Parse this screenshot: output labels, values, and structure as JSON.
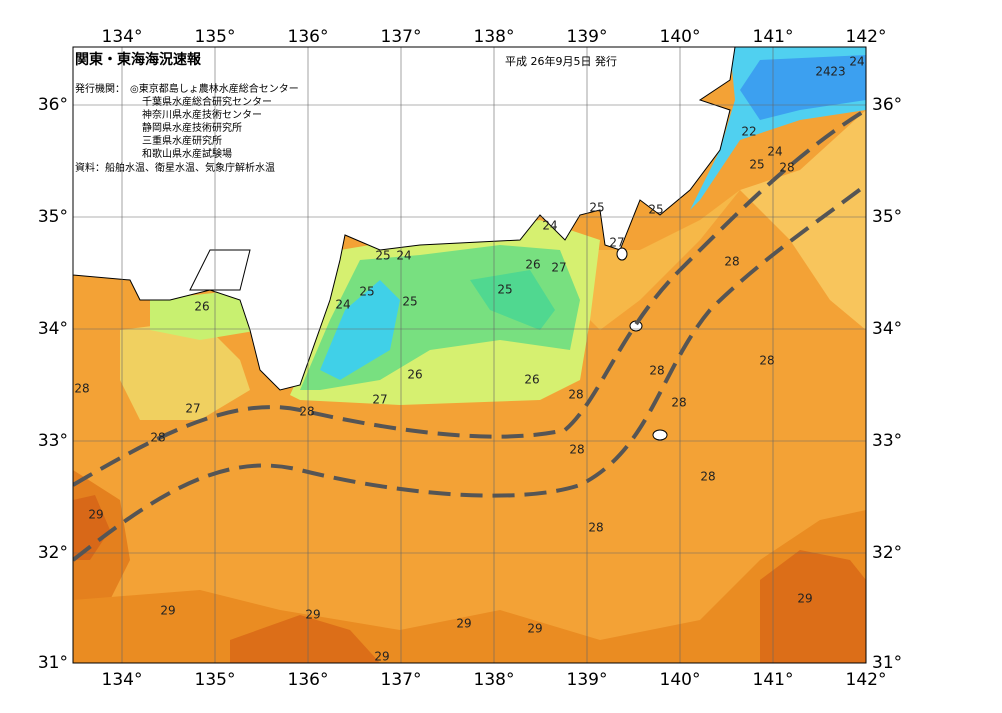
{
  "header": {
    "title": "関東・東海海況速報",
    "date": "平成 26年9月5日 発行",
    "issuer_label": "発行機関：",
    "issuers": [
      "◎東京都島しょ農林水産総合センター",
      "千葉県水産総合研究センター",
      "神奈川県水産技術センター",
      "静岡県水産技術研究所",
      "三重県水産研究所",
      "和歌山県水産試験場"
    ],
    "source": "資料：船舶水温、衛星水温、気象庁解析水温"
  },
  "axes": {
    "longitudes": [
      "134°",
      "135°",
      "136°",
      "137°",
      "138°",
      "139°",
      "140°",
      "141°",
      "142°"
    ],
    "latitudes": [
      "36°",
      "35°",
      "34°",
      "33°",
      "32°",
      "31°"
    ]
  },
  "contour_labels": [
    "24",
    "23",
    "24",
    "22",
    "24",
    "25",
    "28",
    "25",
    "25",
    "24",
    "27",
    "25",
    "24",
    "26",
    "27",
    "28",
    "25",
    "25",
    "24",
    "25",
    "26",
    "28",
    "28",
    "26",
    "26",
    "28",
    "27",
    "28",
    "27",
    "28",
    "28",
    "28",
    "28",
    "28",
    "29",
    "28",
    "29",
    "29",
    "29",
    "29",
    "29",
    "29"
  ]
}
